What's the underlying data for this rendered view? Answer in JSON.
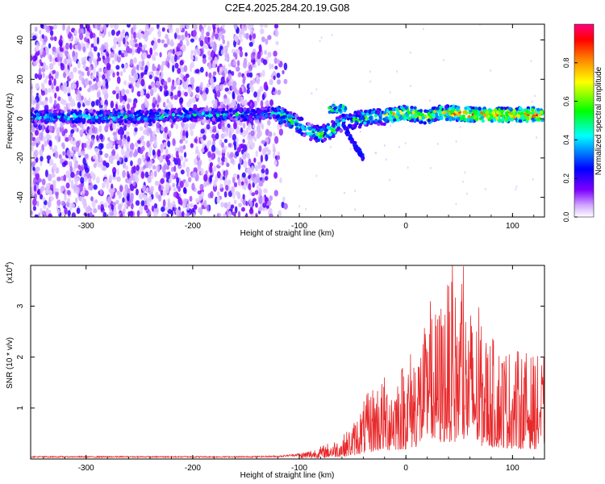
{
  "title": "C2E4.2025.284.20.19.G08",
  "colors": {
    "snr_line": "#e8292b",
    "frame": "#000000"
  },
  "chart_data": [
    {
      "type": "heatmap",
      "xlabel": "Height of straight line (km)",
      "ylabel": "Frequency (Hz)",
      "xlim": [
        -352,
        130
      ],
      "ylim": [
        -50,
        48
      ],
      "xticks": [
        -300,
        -200,
        -100,
        0,
        100
      ],
      "yticks": [
        -40,
        -20,
        0,
        20,
        40
      ],
      "colorbar": {
        "label": "Normalized spectral amplitude",
        "range": [
          0,
          1
        ],
        "ticks": [
          "0.0",
          "0.2",
          "0.4",
          "0.6",
          "0.8"
        ],
        "tick_values": [
          0.0,
          0.2,
          0.4,
          0.6,
          0.8
        ],
        "colormap": [
          "#ffffff",
          "#7f00ff",
          "#0000ff",
          "#00ffff",
          "#00ff00",
          "#ffff00",
          "#ff8000",
          "#ff0000",
          "#ff0080"
        ]
      },
      "description_series": [
        {
          "name": "dominant frequency track",
          "x": [
            -350,
            -300,
            -250,
            -200,
            -150,
            -125,
            -110,
            -100,
            -90,
            -80,
            -70,
            -60,
            -50,
            -40,
            -30,
            -20,
            -10,
            0,
            10,
            20,
            30,
            40,
            60,
            80,
            100,
            120,
            130
          ],
          "y": [
            1,
            1,
            1,
            2,
            2,
            3,
            0,
            -3,
            -7,
            -8,
            -6,
            -2,
            -1,
            0,
            1,
            1,
            2,
            3,
            2,
            1,
            3,
            3,
            2,
            2,
            2,
            2,
            2
          ]
        }
      ]
    },
    {
      "type": "line",
      "xlabel": "Height of straight line (km)",
      "ylabel": "SNR (10 * v/v)",
      "y_multiplier": "(x10",
      "y_multiplier_exp": "4",
      "y_multiplier_close": ")",
      "xlim": [
        -352,
        130
      ],
      "ylim": [
        0,
        3.8
      ],
      "xticks": [
        -300,
        -200,
        -100,
        0,
        100
      ],
      "yticks": [
        1,
        2,
        3
      ],
      "series": [
        {
          "x": [
            -350,
            -300,
            -200,
            -150,
            -120,
            -100,
            -80,
            -60,
            -50,
            -40,
            -30,
            -20,
            -10,
            0,
            10,
            20,
            30,
            40,
            50,
            60,
            70,
            80,
            90,
            100,
            110,
            120,
            130
          ],
          "y": [
            0.05,
            0.05,
            0.05,
            0.05,
            0.06,
            0.1,
            0.2,
            0.35,
            0.55,
            0.9,
            1.2,
            1.3,
            1.4,
            1.6,
            1.9,
            2.1,
            2.4,
            2.8,
            2.6,
            2.4,
            2.1,
            1.9,
            1.8,
            1.7,
            1.7,
            1.6,
            1.6
          ]
        }
      ]
    }
  ]
}
